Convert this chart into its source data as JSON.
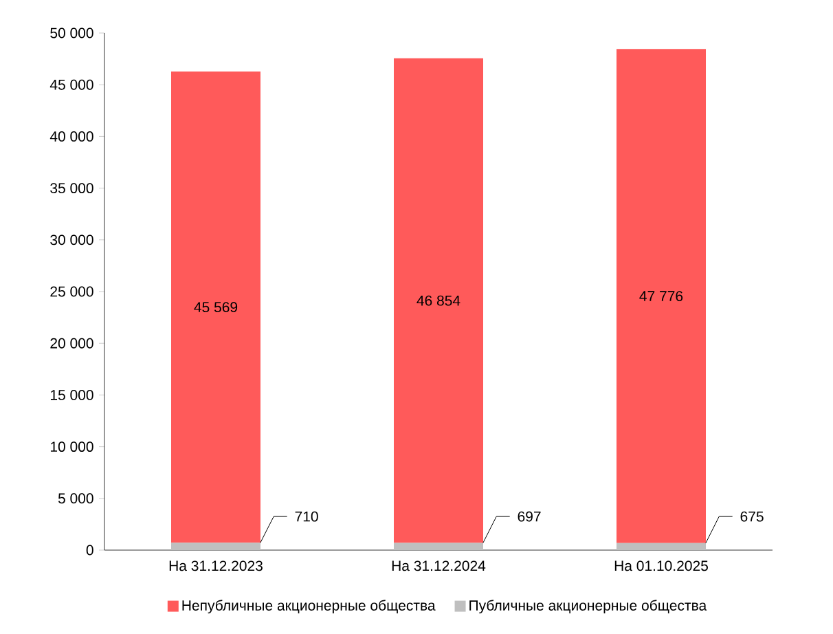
{
  "chart_data": {
    "type": "bar",
    "stacked": true,
    "categories": [
      "На 31.12.2023",
      "На 31.12.2024",
      "На 01.10.2025"
    ],
    "series": [
      {
        "name": "Публичные акционерные общества",
        "color": "#bfbfbf",
        "values": [
          710,
          697,
          675
        ],
        "value_labels": [
          "710",
          "697",
          "675"
        ]
      },
      {
        "name": "Непубличные акционерные общества",
        "color": "#ff5a5a",
        "values": [
          45569,
          46854,
          47776
        ],
        "value_labels": [
          "45 569",
          "46 854",
          "47 776"
        ]
      }
    ],
    "ylim": [
      0,
      50000
    ],
    "yticks": [
      {
        "value": 0,
        "label": "0"
      },
      {
        "value": 5000,
        "label": "5 000"
      },
      {
        "value": 10000,
        "label": "10 000"
      },
      {
        "value": 15000,
        "label": "15 000"
      },
      {
        "value": 20000,
        "label": "20 000"
      },
      {
        "value": 25000,
        "label": "25 000"
      },
      {
        "value": 30000,
        "label": "30 000"
      },
      {
        "value": 35000,
        "label": "35 000"
      },
      {
        "value": 40000,
        "label": "40 000"
      },
      {
        "value": 45000,
        "label": "45 000"
      },
      {
        "value": 50000,
        "label": "50 000"
      }
    ],
    "grid": false,
    "legend": "bottom"
  }
}
